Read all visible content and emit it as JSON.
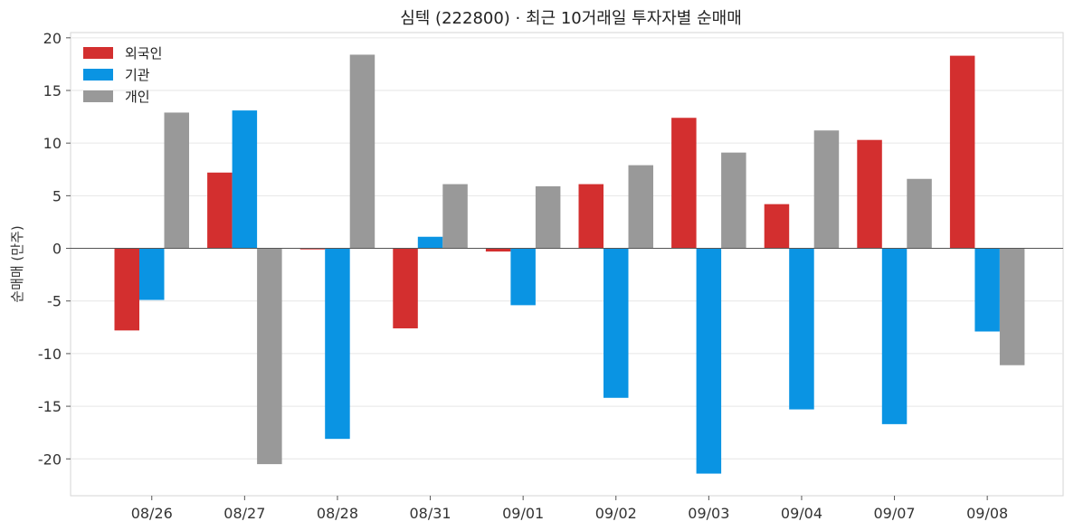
{
  "chart_data": {
    "type": "bar",
    "title": "심텍 (222800) · 최근 10거래일 투자자별 순매매",
    "xlabel": "",
    "ylabel": "순매매 (만주)",
    "categories": [
      "08/26",
      "08/27",
      "08/28",
      "08/31",
      "09/01",
      "09/02",
      "09/03",
      "09/04",
      "09/07",
      "09/08"
    ],
    "series": [
      {
        "name": "외국인",
        "color": "#d32f2f",
        "values": [
          -7.8,
          7.2,
          -0.1,
          -7.6,
          -0.3,
          6.1,
          12.4,
          4.2,
          10.3,
          18.3
        ]
      },
      {
        "name": "기관",
        "color": "#0a94e3",
        "values": [
          -4.9,
          13.1,
          -18.1,
          1.1,
          -5.4,
          -14.2,
          -21.4,
          -15.3,
          -16.7,
          -7.9
        ]
      },
      {
        "name": "개인",
        "color": "#999999",
        "values": [
          12.9,
          -20.5,
          18.4,
          6.1,
          5.9,
          7.9,
          9.1,
          11.2,
          6.6,
          -11.1
        ]
      }
    ],
    "ylim": [
      -23.5,
      20.5
    ],
    "yticks": [
      20,
      15,
      10,
      5,
      0,
      -5,
      -10,
      -15,
      -20
    ],
    "ytick_labels": [
      "20",
      "15",
      "10",
      "5",
      "0",
      "-5",
      "-10",
      "-15",
      "-20"
    ],
    "grid": true,
    "legend_position": "top-left"
  }
}
